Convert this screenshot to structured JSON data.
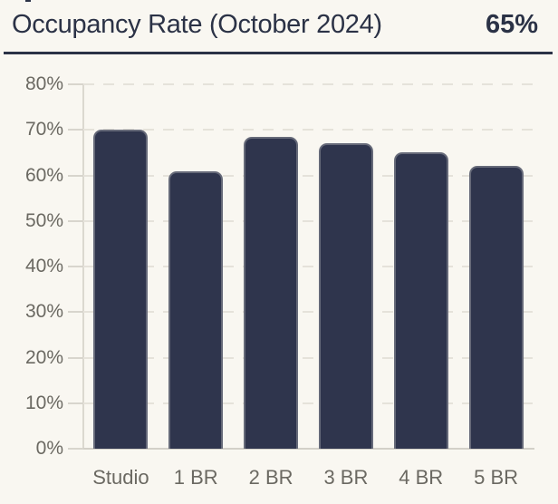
{
  "header": {
    "title": "Occupancy Rate (October 2024)",
    "headline_value": "65%"
  },
  "chart_data": {
    "type": "bar",
    "title": "Occupancy Rate (October 2024)",
    "headline_value": "65%",
    "categories": [
      "Studio",
      "1 BR",
      "2 BR",
      "3 BR",
      "4 BR",
      "5 BR"
    ],
    "values": [
      70,
      61,
      68.5,
      67,
      65,
      62
    ],
    "unit": "%",
    "xlabel": "",
    "ylabel": "",
    "ylim": [
      0,
      80
    ],
    "yticks": [
      80,
      70,
      60,
      50,
      40,
      30,
      20,
      10,
      0
    ],
    "ytick_labels": [
      "80%",
      "70%",
      "60%",
      "50%",
      "40%",
      "30%",
      "20%",
      "10%",
      "0%"
    ],
    "grid": "horizontal-dashed",
    "legend": "none",
    "colors": {
      "background": "#f9f7f1",
      "bar": "#2f354d",
      "title_text": "#2b3246",
      "axis_text": "#6b6962",
      "gridline": "#e5e2da",
      "axis_line": "#d8d5cd",
      "divider": "#2b3246"
    }
  }
}
